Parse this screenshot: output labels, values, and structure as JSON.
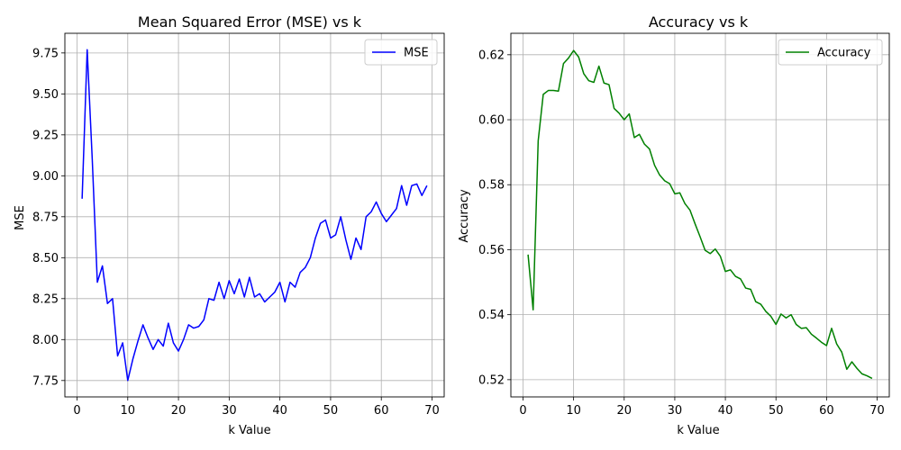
{
  "chart_data": [
    {
      "type": "line",
      "title": "Mean Squared Error (MSE) vs k",
      "xlabel": "k Value",
      "ylabel": "MSE",
      "xlim": [
        -2.4,
        72.4
      ],
      "ylim": [
        7.65,
        9.87
      ],
      "xticks": [
        0,
        10,
        20,
        30,
        40,
        50,
        60,
        70
      ],
      "yticks": [
        7.75,
        8.0,
        8.25,
        8.5,
        8.75,
        9.0,
        9.25,
        9.5,
        9.75
      ],
      "ytick_labels": [
        "7.75",
        "8.00",
        "8.25",
        "8.50",
        "8.75",
        "9.00",
        "9.25",
        "9.50",
        "9.75"
      ],
      "grid": true,
      "legend_position": "top-right",
      "series": [
        {
          "name": "MSE",
          "color": "#0000ff",
          "x": [
            1,
            2,
            3,
            4,
            5,
            6,
            7,
            8,
            9,
            10,
            11,
            12,
            13,
            14,
            15,
            16,
            17,
            18,
            19,
            20,
            21,
            22,
            23,
            24,
            25,
            26,
            27,
            28,
            29,
            30,
            31,
            32,
            33,
            34,
            35,
            36,
            37,
            38,
            39,
            40,
            41,
            42,
            43,
            44,
            45,
            46,
            47,
            48,
            49,
            50,
            51,
            52,
            53,
            54,
            55,
            56,
            57,
            58,
            59,
            60,
            61,
            62,
            63,
            64,
            65,
            66,
            67,
            68,
            69
          ],
          "y": [
            8.86,
            9.77,
            9.1,
            8.35,
            8.45,
            8.22,
            8.25,
            7.9,
            7.98,
            7.75,
            7.88,
            7.99,
            8.09,
            8.01,
            7.94,
            8.0,
            7.96,
            8.1,
            7.98,
            7.93,
            8.0,
            8.09,
            8.07,
            8.08,
            8.12,
            8.25,
            8.24,
            8.35,
            8.25,
            8.36,
            8.28,
            8.37,
            8.26,
            8.38,
            8.26,
            8.28,
            8.23,
            8.26,
            8.29,
            8.35,
            8.23,
            8.35,
            8.32,
            8.41,
            8.44,
            8.5,
            8.62,
            8.71,
            8.73,
            8.62,
            8.64,
            8.75,
            8.61,
            8.49,
            8.62,
            8.55,
            8.75,
            8.78,
            8.84,
            8.77,
            8.72,
            8.76,
            8.8,
            8.94,
            8.82,
            8.94,
            8.95,
            8.88,
            8.94
          ]
        }
      ]
    },
    {
      "type": "line",
      "title": "Accuracy vs k",
      "xlabel": "k Value",
      "ylabel": "Accuracy",
      "xlim": [
        -2.4,
        72.4
      ],
      "ylim": [
        0.5147,
        0.6266
      ],
      "xticks": [
        0,
        10,
        20,
        30,
        40,
        50,
        60,
        70
      ],
      "yticks": [
        0.52,
        0.54,
        0.56,
        0.58,
        0.6,
        0.62
      ],
      "ytick_labels": [
        "0.52",
        "0.54",
        "0.56",
        "0.58",
        "0.60",
        "0.62"
      ],
      "grid": true,
      "legend_position": "top-right",
      "series": [
        {
          "name": "Accuracy",
          "color": "#008000",
          "x": [
            1,
            2,
            3,
            4,
            5,
            6,
            7,
            8,
            9,
            10,
            11,
            12,
            13,
            14,
            15,
            16,
            17,
            18,
            19,
            20,
            21,
            22,
            23,
            24,
            25,
            26,
            27,
            28,
            29,
            30,
            31,
            32,
            33,
            34,
            35,
            36,
            37,
            38,
            39,
            40,
            41,
            42,
            43,
            44,
            45,
            46,
            47,
            48,
            49,
            50,
            51,
            52,
            53,
            54,
            55,
            56,
            57,
            58,
            59,
            60,
            61,
            62,
            63,
            64,
            65,
            66,
            67,
            68,
            69
          ],
          "y": [
            0.5585,
            0.5415,
            0.5935,
            0.6078,
            0.609,
            0.609,
            0.6088,
            0.6173,
            0.619,
            0.6213,
            0.6193,
            0.6142,
            0.612,
            0.6115,
            0.6165,
            0.6113,
            0.6108,
            0.6035,
            0.602,
            0.6,
            0.6018,
            0.5945,
            0.5955,
            0.5925,
            0.591,
            0.586,
            0.583,
            0.5812,
            0.5803,
            0.5772,
            0.5775,
            0.5742,
            0.5722,
            0.568,
            0.564,
            0.5598,
            0.5588,
            0.5602,
            0.558,
            0.5533,
            0.5538,
            0.5518,
            0.551,
            0.5482,
            0.5478,
            0.544,
            0.5432,
            0.541,
            0.5395,
            0.537,
            0.5402,
            0.539,
            0.54,
            0.537,
            0.5358,
            0.536,
            0.534,
            0.5328,
            0.5315,
            0.5305,
            0.5358,
            0.531,
            0.5285,
            0.5232,
            0.5255,
            0.5235,
            0.5218,
            0.5212,
            0.5204
          ]
        }
      ]
    }
  ]
}
